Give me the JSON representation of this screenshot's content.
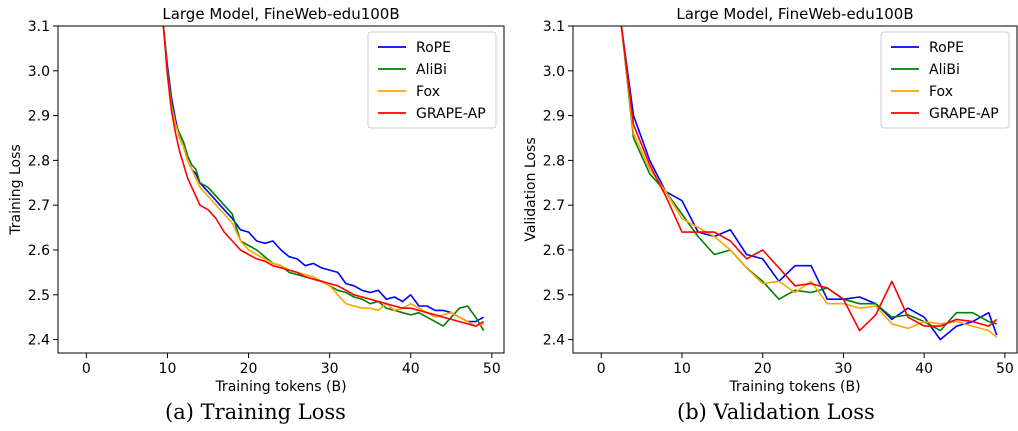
{
  "captions": [
    "(a) Training Loss",
    "(b) Validation Loss"
  ],
  "chart_data": [
    {
      "type": "line",
      "title": "Large Model, FineWeb-edu100B",
      "xlabel": "Training tokens (B)",
      "ylabel": "Training Loss",
      "xlim": [
        -3.5,
        51.5
      ],
      "ylim": [
        2.37,
        3.1
      ],
      "xticks": [
        0,
        10,
        20,
        30,
        40,
        50
      ],
      "yticks": [
        2.4,
        2.5,
        2.6,
        2.7,
        2.8,
        2.9,
        3.0,
        3.1
      ],
      "grid": false,
      "legend_position": "top-right",
      "series": [
        {
          "name": "RoPE",
          "color": "#0000ff",
          "x": [
            9.5,
            10,
            10.5,
            11,
            11.5,
            12,
            12.5,
            13,
            13.5,
            14,
            15,
            16,
            17,
            18,
            19,
            20,
            21,
            22,
            23,
            24,
            25,
            26,
            27,
            28,
            29,
            30,
            31,
            32,
            33,
            34,
            35,
            36,
            37,
            38,
            39,
            40,
            41,
            42,
            43,
            44,
            45,
            46,
            47,
            48,
            49
          ],
          "y": [
            3.1,
            3.01,
            2.94,
            2.89,
            2.85,
            2.83,
            2.8,
            2.78,
            2.77,
            2.75,
            2.73,
            2.71,
            2.69,
            2.67,
            2.645,
            2.64,
            2.62,
            2.615,
            2.62,
            2.6,
            2.585,
            2.58,
            2.565,
            2.57,
            2.56,
            2.555,
            2.55,
            2.525,
            2.52,
            2.51,
            2.505,
            2.51,
            2.49,
            2.495,
            2.485,
            2.5,
            2.475,
            2.475,
            2.465,
            2.465,
            2.46,
            2.45,
            2.44,
            2.44,
            2.45
          ]
        },
        {
          "name": "AliBi",
          "color": "#008000",
          "x": [
            9.5,
            10,
            10.5,
            11,
            11.5,
            12,
            12.5,
            13,
            13.5,
            14,
            15,
            16,
            17,
            18,
            19,
            20,
            21,
            22,
            23,
            24,
            25,
            26,
            27,
            28,
            29,
            30,
            31,
            32,
            33,
            34,
            35,
            36,
            37,
            38,
            39,
            40,
            41,
            42,
            43,
            44,
            45,
            46,
            47,
            48,
            49
          ],
          "y": [
            3.1,
            3.0,
            2.93,
            2.88,
            2.86,
            2.84,
            2.81,
            2.79,
            2.78,
            2.75,
            2.74,
            2.72,
            2.7,
            2.68,
            2.62,
            2.61,
            2.6,
            2.585,
            2.57,
            2.565,
            2.55,
            2.545,
            2.54,
            2.535,
            2.53,
            2.52,
            2.51,
            2.505,
            2.495,
            2.49,
            2.48,
            2.485,
            2.47,
            2.465,
            2.46,
            2.455,
            2.46,
            2.45,
            2.44,
            2.43,
            2.45,
            2.47,
            2.475,
            2.45,
            2.42
          ]
        },
        {
          "name": "Fox",
          "color": "#ffa500",
          "x": [
            9.5,
            10,
            10.5,
            11,
            11.5,
            12,
            12.5,
            13,
            13.5,
            14,
            15,
            16,
            17,
            18,
            19,
            20,
            21,
            22,
            23,
            24,
            25,
            26,
            27,
            28,
            29,
            30,
            31,
            32,
            33,
            34,
            35,
            36,
            37,
            38,
            39,
            40,
            41,
            42,
            43,
            44,
            45,
            46,
            47,
            48,
            49
          ],
          "y": [
            3.1,
            2.99,
            2.92,
            2.88,
            2.85,
            2.83,
            2.8,
            2.78,
            2.76,
            2.74,
            2.72,
            2.7,
            2.68,
            2.66,
            2.62,
            2.6,
            2.59,
            2.58,
            2.57,
            2.565,
            2.555,
            2.55,
            2.545,
            2.54,
            2.53,
            2.52,
            2.5,
            2.48,
            2.475,
            2.47,
            2.47,
            2.465,
            2.48,
            2.465,
            2.47,
            2.48,
            2.47,
            2.46,
            2.45,
            2.455,
            2.46,
            2.45,
            2.44,
            2.43,
            2.435
          ]
        },
        {
          "name": "GRAPE-AP",
          "color": "#ff0000",
          "x": [
            9.5,
            10,
            10.5,
            11,
            11.5,
            12,
            12.5,
            13,
            13.5,
            14,
            15,
            16,
            17,
            18,
            19,
            20,
            21,
            22,
            23,
            24,
            25,
            26,
            27,
            28,
            29,
            30,
            31,
            32,
            33,
            34,
            35,
            36,
            37,
            38,
            39,
            40,
            41,
            42,
            43,
            44,
            45,
            46,
            47,
            48,
            49
          ],
          "y": [
            3.1,
            2.99,
            2.91,
            2.86,
            2.82,
            2.79,
            2.76,
            2.74,
            2.72,
            2.7,
            2.69,
            2.67,
            2.64,
            2.62,
            2.6,
            2.59,
            2.58,
            2.575,
            2.565,
            2.56,
            2.555,
            2.55,
            2.54,
            2.535,
            2.53,
            2.525,
            2.52,
            2.51,
            2.5,
            2.495,
            2.49,
            2.485,
            2.48,
            2.475,
            2.47,
            2.47,
            2.465,
            2.46,
            2.455,
            2.45,
            2.445,
            2.44,
            2.435,
            2.43,
            2.44
          ]
        }
      ]
    },
    {
      "type": "line",
      "title": "Large Model, FineWeb-edu100B",
      "xlabel": "Training tokens (B)",
      "ylabel": "Validation Loss",
      "xlim": [
        -3.5,
        51.5
      ],
      "ylim": [
        2.37,
        3.1
      ],
      "xticks": [
        0,
        10,
        20,
        30,
        40,
        50
      ],
      "yticks": [
        2.4,
        2.5,
        2.6,
        2.7,
        2.8,
        2.9,
        3.0,
        3.1
      ],
      "grid": false,
      "legend_position": "top-right",
      "series": [
        {
          "name": "RoPE",
          "color": "#0000ff",
          "x": [
            2.5,
            4,
            6,
            8,
            10,
            12,
            14,
            16,
            18,
            20,
            22,
            24,
            26,
            28,
            30,
            32,
            34,
            36,
            38,
            40,
            42,
            44,
            46,
            48,
            49
          ],
          "y": [
            3.1,
            2.9,
            2.8,
            2.73,
            2.71,
            2.64,
            2.63,
            2.645,
            2.59,
            2.58,
            2.53,
            2.565,
            2.565,
            2.49,
            2.49,
            2.495,
            2.48,
            2.445,
            2.47,
            2.45,
            2.4,
            2.43,
            2.44,
            2.46,
            2.41
          ]
        },
        {
          "name": "AliBi",
          "color": "#008000",
          "x": [
            2.5,
            4,
            6,
            8,
            10,
            12,
            14,
            16,
            18,
            20,
            22,
            24,
            26,
            28,
            30,
            32,
            34,
            36,
            38,
            40,
            42,
            44,
            46,
            48,
            49
          ],
          "y": [
            3.1,
            2.85,
            2.77,
            2.73,
            2.68,
            2.63,
            2.59,
            2.6,
            2.56,
            2.53,
            2.49,
            2.51,
            2.505,
            2.515,
            2.49,
            2.48,
            2.48,
            2.45,
            2.455,
            2.44,
            2.42,
            2.46,
            2.46,
            2.44,
            2.435
          ]
        },
        {
          "name": "Fox",
          "color": "#ffa500",
          "x": [
            2.5,
            4,
            6,
            8,
            10,
            12,
            14,
            16,
            18,
            20,
            22,
            24,
            26,
            28,
            30,
            32,
            34,
            36,
            38,
            40,
            42,
            44,
            46,
            48,
            49
          ],
          "y": [
            3.1,
            2.86,
            2.78,
            2.73,
            2.67,
            2.65,
            2.63,
            2.6,
            2.56,
            2.525,
            2.53,
            2.505,
            2.53,
            2.48,
            2.48,
            2.47,
            2.475,
            2.435,
            2.425,
            2.44,
            2.435,
            2.44,
            2.43,
            2.42,
            2.405
          ]
        },
        {
          "name": "GRAPE-AP",
          "color": "#ff0000",
          "x": [
            2.5,
            4,
            6,
            8,
            10,
            12,
            14,
            16,
            18,
            20,
            22,
            24,
            26,
            28,
            30,
            32,
            34,
            36,
            38,
            40,
            42,
            44,
            46,
            48,
            49
          ],
          "y": [
            3.1,
            2.88,
            2.79,
            2.72,
            2.64,
            2.64,
            2.64,
            2.62,
            2.58,
            2.6,
            2.56,
            2.52,
            2.525,
            2.515,
            2.49,
            2.42,
            2.455,
            2.53,
            2.45,
            2.43,
            2.43,
            2.445,
            2.44,
            2.43,
            2.445
          ]
        }
      ]
    }
  ]
}
